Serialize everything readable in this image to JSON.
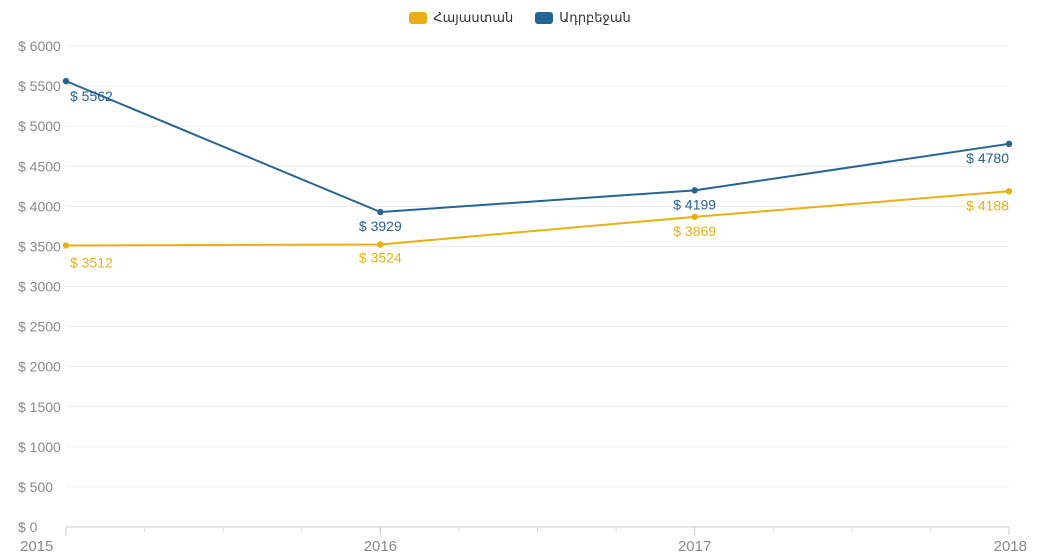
{
  "chart_data": {
    "type": "line",
    "title": "",
    "xlabel": "",
    "ylabel": "",
    "x": [
      "2015",
      "2016",
      "2017",
      "2018"
    ],
    "ylim": [
      0,
      6000
    ],
    "y_ticks": [
      0,
      500,
      1000,
      1500,
      2000,
      2500,
      3000,
      3500,
      4000,
      4500,
      5000,
      5500,
      6000
    ],
    "y_tick_prefix": "$ ",
    "grid": true,
    "legend_position": "top-center",
    "series": [
      {
        "name": "Հայաստան",
        "color": "#e9af14",
        "values": [
          3512,
          3524,
          3869,
          4188
        ],
        "labels": [
          "$ 3512",
          "$ 3524",
          "$ 3869",
          "$ 4188"
        ]
      },
      {
        "name": "Ադրբեջան",
        "color": "#276496",
        "values": [
          5562,
          3929,
          4199,
          4780
        ],
        "labels": [
          "$ 5562",
          "$ 3929",
          "$ 4199",
          "$ 4780"
        ]
      }
    ]
  }
}
